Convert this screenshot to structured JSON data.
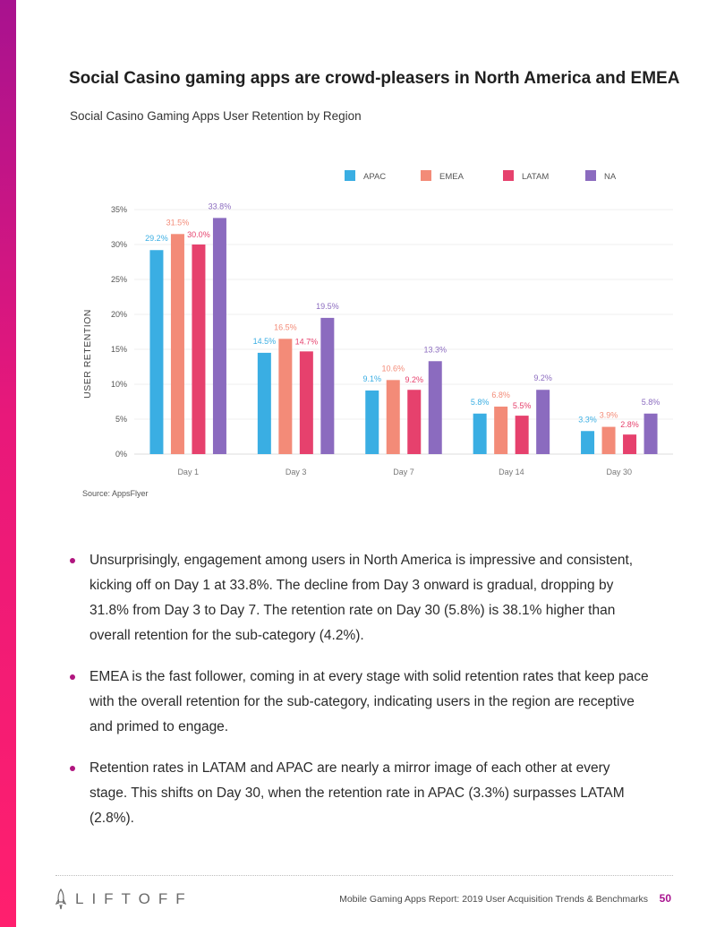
{
  "headline": "Social Casino gaming apps are crowd-pleasers in North America and EMEA",
  "chart_data": {
    "type": "bar",
    "title": "Social Casino Gaming Apps User Retention by Region",
    "xlabel": "",
    "ylabel": "USER RETENTION",
    "ylim": [
      0,
      35
    ],
    "yticks": [
      "0%",
      "5%",
      "10%",
      "15%",
      "20%",
      "25%",
      "30%",
      "35%"
    ],
    "legend_position": "top-right",
    "grid": true,
    "categories": [
      "Day 1",
      "Day 3",
      "Day 7",
      "Day 14",
      "Day 30"
    ],
    "series": [
      {
        "name": "APAC",
        "color": "#3aaee3",
        "values": [
          29.2,
          14.5,
          9.1,
          5.8,
          3.3
        ],
        "labels": [
          "29.2%",
          "14.5%",
          "9.1%",
          "5.8%",
          "3.3%"
        ]
      },
      {
        "name": "EMEA",
        "color": "#f38b78",
        "values": [
          31.5,
          16.5,
          10.6,
          6.8,
          3.9
        ],
        "labels": [
          "31.5%",
          "16.5%",
          "10.6%",
          "6.8%",
          "3.9%"
        ]
      },
      {
        "name": "LATAM",
        "color": "#e6416d",
        "values": [
          30.0,
          14.7,
          9.2,
          5.5,
          2.8
        ],
        "labels": [
          "30.0%",
          "14.7%",
          "9.2%",
          "5.5%",
          "2.8%"
        ]
      },
      {
        "name": "NA",
        "color": "#8b6bbf",
        "values": [
          33.8,
          19.5,
          13.3,
          9.2,
          5.8
        ],
        "labels": [
          "33.8%",
          "19.5%",
          "13.3%",
          "9.2%",
          "5.8%"
        ]
      }
    ]
  },
  "source": "Source: AppsFlyer",
  "bullets": [
    "Unsurprisingly, engagement among users in North America is impressive and consistent, kicking off on Day 1 at 33.8%. The decline from Day 3 onward is gradual, dropping by 31.8% from Day 3 to Day 7. The retention rate on Day 30 (5.8%) is 38.1% higher than overall retention for the sub-category (4.2%).",
    "EMEA is the fast follower, coming in at every stage with solid retention rates that keep pace with the overall retention for the sub-category, indicating users in the region are receptive and primed to engage.",
    "Retention rates in LATAM and APAC are nearly a mirror image of each other at every stage. This shifts on Day 30, when the retention rate in APAC (3.3%) surpasses LATAM (2.8%)."
  ],
  "footer": {
    "logo_text": "LIFTOFF",
    "report_name": "Mobile Gaming Apps Report: 2019 User Acquisition Trends & Benchmarks",
    "page_number": "50"
  },
  "colors": {
    "accent": "#a8128f",
    "sidebar_gradient_end": "#ff1f6e"
  }
}
